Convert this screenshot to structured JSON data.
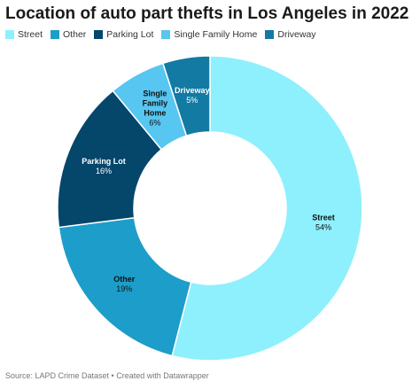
{
  "chart_data": {
    "type": "pie",
    "variant": "donut",
    "title": "Location of auto part thefts in Los Angeles in 2022",
    "categories": [
      "Street",
      "Other",
      "Parking Lot",
      "Single Family Home",
      "Driveway"
    ],
    "values": [
      54,
      19,
      16,
      6,
      5
    ],
    "value_labels": [
      "54%",
      "19%",
      "16%",
      "6%",
      "5%"
    ],
    "unit": "%",
    "colors": [
      "#8ef0fc",
      "#1d9dc9",
      "#05466b",
      "#57c6f0",
      "#127aa3"
    ],
    "legend_position": "top-left"
  },
  "source": "Source: LAPD Crime Dataset • Created with Datawrapper"
}
